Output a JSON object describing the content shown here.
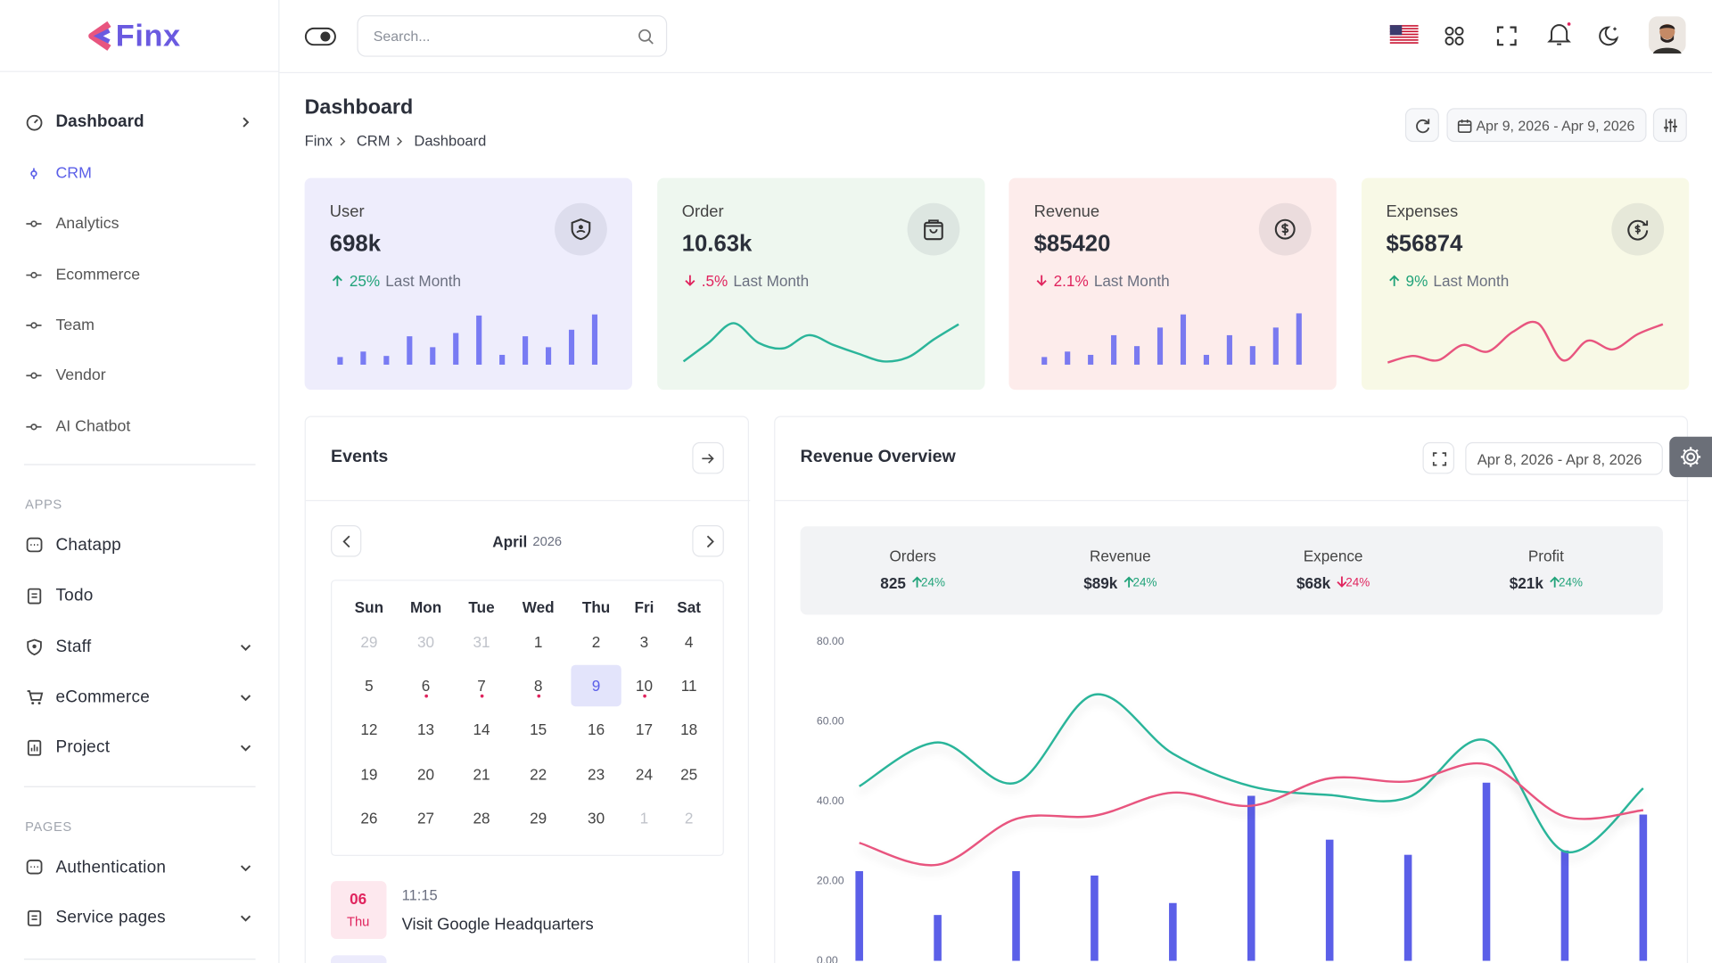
{
  "brand": "Finx",
  "search_placeholder": "Search...",
  "sidebar": {
    "menu": [
      {
        "label": "Dashboard",
        "children": [
          {
            "label": "CRM",
            "active": true
          },
          {
            "label": "Analytics"
          },
          {
            "label": "Ecommerce"
          },
          {
            "label": "Team"
          },
          {
            "label": "Vendor"
          },
          {
            "label": "AI Chatbot"
          }
        ]
      }
    ],
    "sections": [
      {
        "title": "APPS",
        "items": [
          {
            "label": "Chatapp"
          },
          {
            "label": "Todo"
          },
          {
            "label": "Staff",
            "expandable": true
          },
          {
            "label": "eCommerce",
            "expandable": true
          },
          {
            "label": "Project",
            "expandable": true
          }
        ]
      },
      {
        "title": "PAGES",
        "items": [
          {
            "label": "Authentication",
            "expandable": true
          },
          {
            "label": "Service pages",
            "expandable": true
          }
        ]
      }
    ]
  },
  "page": {
    "title": "Dashboard",
    "breadcrumb": [
      "Finx",
      "CRM",
      "Dashboard"
    ],
    "date_range": "Apr 9, 2026 - Apr 9, 2026"
  },
  "stats": [
    {
      "label": "User",
      "value": "698k",
      "change": "25%",
      "note": "Last Month",
      "trend": "up",
      "background": "#eeedfc",
      "spark": {
        "type": "bar",
        "color": "#6366f1",
        "values": [
          7,
          12,
          8,
          26,
          16,
          29,
          45,
          9,
          26,
          16,
          32,
          46
        ]
      }
    },
    {
      "label": "Order",
      "value": "10.63k",
      "change": ".5%",
      "note": "Last Month",
      "trend": "down",
      "background": "#eef7ef",
      "spark": {
        "type": "line",
        "color": "#2bb59a",
        "values": [
          3,
          20,
          38,
          20,
          15,
          27,
          18,
          10,
          3,
          7,
          23,
          37
        ]
      }
    },
    {
      "label": "Revenue",
      "value": "$85420",
      "change": "2.1%",
      "note": "Last Month",
      "trend": "down",
      "background": "#fdeceb",
      "spark": {
        "type": "bar",
        "color": "#6366f1",
        "values": [
          7,
          12,
          9,
          27,
          17,
          34,
          46,
          9,
          27,
          17,
          34,
          47
        ]
      }
    },
    {
      "label": "Expenses",
      "value": "$56874",
      "change": "9%",
      "note": "Last Month",
      "trend": "up",
      "background": "#f8f9e6",
      "spark": {
        "type": "line",
        "color": "#e8557f",
        "values": [
          2,
          8,
          4,
          18,
          12,
          30,
          38,
          4,
          22,
          14,
          28,
          37
        ]
      }
    }
  ],
  "events": {
    "title": "Events",
    "month": "April",
    "year": "2026",
    "weekdays": [
      "Sun",
      "Mon",
      "Tue",
      "Wed",
      "Thu",
      "Fri",
      "Sat"
    ],
    "weeks": [
      [
        {
          "day": "29",
          "state": "muted"
        },
        {
          "day": "30",
          "state": "muted"
        },
        {
          "day": "31",
          "state": "muted"
        },
        {
          "day": "1"
        },
        {
          "day": "2"
        },
        {
          "day": "3"
        },
        {
          "day": "4"
        }
      ],
      [
        {
          "day": "5"
        },
        {
          "day": "6",
          "state": "event"
        },
        {
          "day": "7",
          "state": "event"
        },
        {
          "day": "8",
          "state": "event"
        },
        {
          "day": "9",
          "state": "selected"
        },
        {
          "day": "10",
          "state": "event"
        },
        {
          "day": "11"
        }
      ],
      [
        {
          "day": "12"
        },
        {
          "day": "13"
        },
        {
          "day": "14"
        },
        {
          "day": "15"
        },
        {
          "day": "16"
        },
        {
          "day": "17"
        },
        {
          "day": "18"
        }
      ],
      [
        {
          "day": "19"
        },
        {
          "day": "20"
        },
        {
          "day": "21"
        },
        {
          "day": "22"
        },
        {
          "day": "23"
        },
        {
          "day": "24"
        },
        {
          "day": "25"
        }
      ],
      [
        {
          "day": "26"
        },
        {
          "day": "27"
        },
        {
          "day": "28"
        },
        {
          "day": "29"
        },
        {
          "day": "30"
        },
        {
          "day": "1",
          "state": "muted"
        },
        {
          "day": "2",
          "state": "muted"
        }
      ]
    ],
    "items": [
      {
        "date": "06",
        "weekday": "Thu",
        "time": "11:15",
        "title": "Visit Google Headquarters"
      }
    ]
  },
  "revenue_overview": {
    "title": "Revenue Overview",
    "date_range": "Apr 8, 2026 - Apr 8, 2026",
    "summary": [
      {
        "label": "Orders",
        "value": "825",
        "change": "24%",
        "trend": "up"
      },
      {
        "label": "Revenue",
        "value": "$89k",
        "change": "24%",
        "trend": "up"
      },
      {
        "label": "Expence",
        "value": "$68k",
        "change": "24%",
        "trend": "down"
      },
      {
        "label": "Profit",
        "value": "$21k",
        "change": "24%",
        "trend": "up"
      }
    ]
  },
  "chart_data": {
    "type": "combo",
    "categories": [
      null,
      null,
      null,
      null,
      null,
      null,
      null,
      null,
      null,
      null,
      null
    ],
    "series": [
      {
        "type": "bar",
        "color": "#5b5fe8",
        "values": [
          22.5,
          11.5,
          22.5,
          21.4,
          14.5,
          41.4,
          30.4,
          26.6,
          44.7,
          27.7,
          36.7
        ]
      },
      {
        "type": "line",
        "color": "#2bb59a",
        "values": [
          43.8,
          54.8,
          44.7,
          66.8,
          52,
          43.8,
          41.6,
          41,
          55.3,
          27.4,
          43.3
        ]
      },
      {
        "type": "line",
        "color": "#e8557f",
        "values": [
          29.6,
          24.1,
          35.6,
          36.4,
          42.2,
          38.9,
          45.8,
          45,
          49.3,
          36.2,
          37.8
        ]
      }
    ],
    "ylim": [
      0,
      80
    ],
    "yticks": [
      {
        "value": 0,
        "label": "0.00"
      },
      {
        "value": 20,
        "label": "20.00"
      },
      {
        "value": 40,
        "label": "40.00"
      },
      {
        "value": 60,
        "label": "60.00"
      },
      {
        "value": 80,
        "label": "80.00"
      }
    ]
  }
}
